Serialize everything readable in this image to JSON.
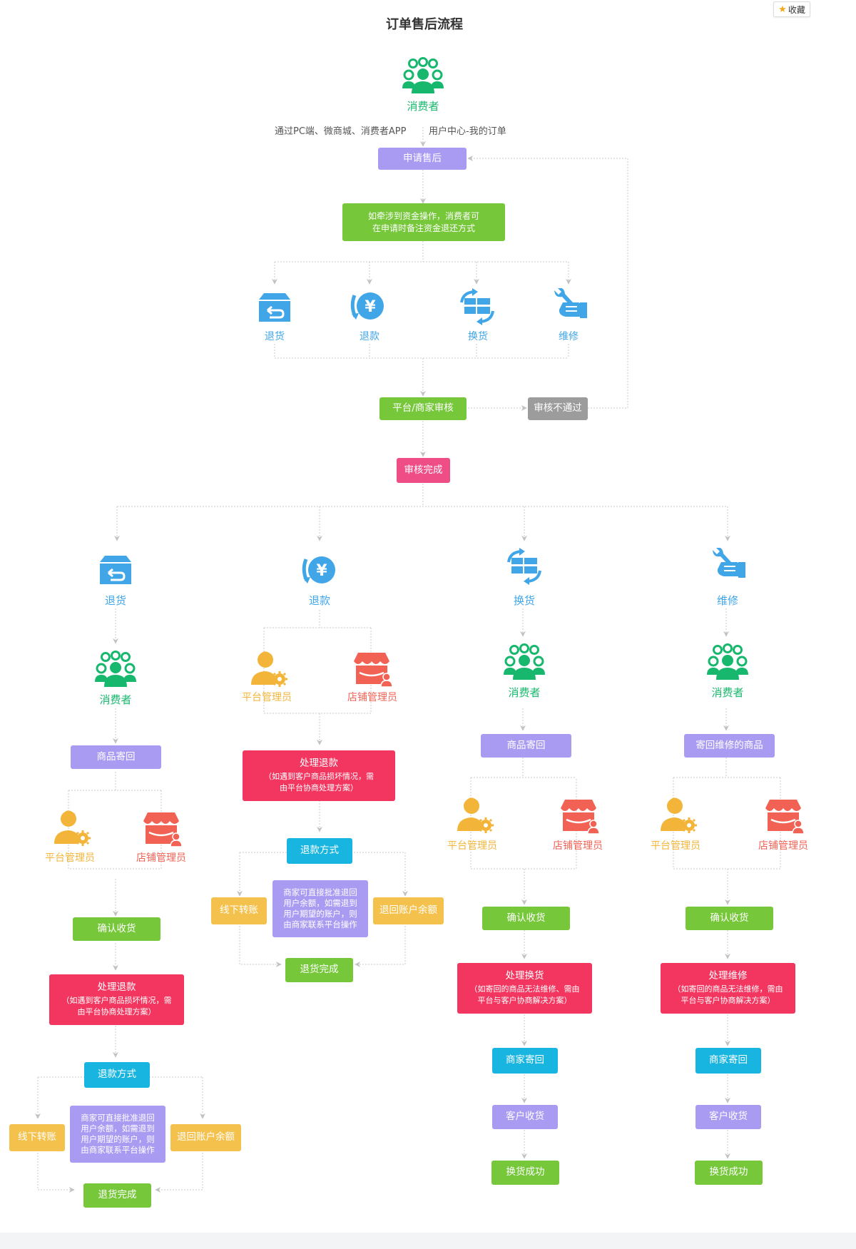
{
  "title": "订单售后流程",
  "favorite_label": "收藏",
  "top": {
    "consumer": "消费者",
    "channel_caption": "通过PC端、微商城、消费者APP",
    "path_caption": "用户中心-我的订单",
    "apply": "申请售后",
    "funds_note": [
      "如牵涉到资金操作，消费者可",
      "在申请时备注资金退还方式"
    ],
    "options": [
      "退货",
      "退款",
      "换货",
      "维修"
    ],
    "review": "平台/商家审核",
    "rejected": "审核不通过",
    "approved": "审核完成"
  },
  "branches": {
    "return": {
      "label": "退货",
      "consumer": "消费者",
      "send_back": "商品寄回",
      "platform_admin": "平台管理员",
      "store_admin": "店铺管理员",
      "confirm": "确认收货",
      "process": "处理退款",
      "process_note": [
        "（如遇到客户商品损坏情况，需",
        "由平台协商处理方案）"
      ],
      "method": "退款方式",
      "offline": "线下转账",
      "merchant_note": [
        "商家可直接批准退回",
        "用户余额，如需退到",
        "用户期望的账户，则",
        "由商家联系平台操作"
      ],
      "balance": "退回账户余额",
      "done": "退货完成"
    },
    "refund": {
      "label": "退款",
      "platform_admin": "平台管理员",
      "store_admin": "店铺管理员",
      "process": "处理退款",
      "process_note": [
        "（如遇到客户商品损坏情况，需",
        "由平台协商处理方案）"
      ],
      "method": "退款方式",
      "offline": "线下转账",
      "merchant_note": [
        "商家可直接批准退回",
        "用户余额，如需退到",
        "用户期望的账户，则",
        "由商家联系平台操作"
      ],
      "balance": "退回账户余额",
      "done": "退货完成"
    },
    "exchange": {
      "label": "换货",
      "consumer": "消费者",
      "send_back": "商品寄回",
      "platform_admin": "平台管理员",
      "store_admin": "店铺管理员",
      "confirm": "确认收货",
      "process": "处理换货",
      "process_note": [
        "（如寄回的商品无法维修、需由",
        "平台与客户协商解决方案）"
      ],
      "merchant_send": "商家寄回",
      "customer_receive": "客户收货",
      "success": "换货成功"
    },
    "repair": {
      "label": "维修",
      "consumer": "消费者",
      "send_back": "寄回维修的商品",
      "platform_admin": "平台管理员",
      "store_admin": "店铺管理员",
      "confirm": "确认收货",
      "process": "处理维修",
      "process_note": [
        "（如寄回的商品无法维修，需由",
        "平台与客户协商解决方案）"
      ],
      "merchant_send": "商家寄回",
      "customer_receive": "客户收货",
      "success": "换货成功"
    }
  },
  "colors": {
    "consumer_green": "#17b86d",
    "option_blue": "#40a6e8",
    "platform_orange": "#f2b53a",
    "store_red": "#f26254",
    "box_purple": "#a99bf2",
    "box_green": "#76c73a",
    "box_pink": "#ef4d86",
    "box_red": "#f2365f",
    "box_blue": "#18b5e0",
    "box_yellow": "#f4c14c",
    "box_gray": "#9c9c9c",
    "connector": "#c8c8c8"
  }
}
